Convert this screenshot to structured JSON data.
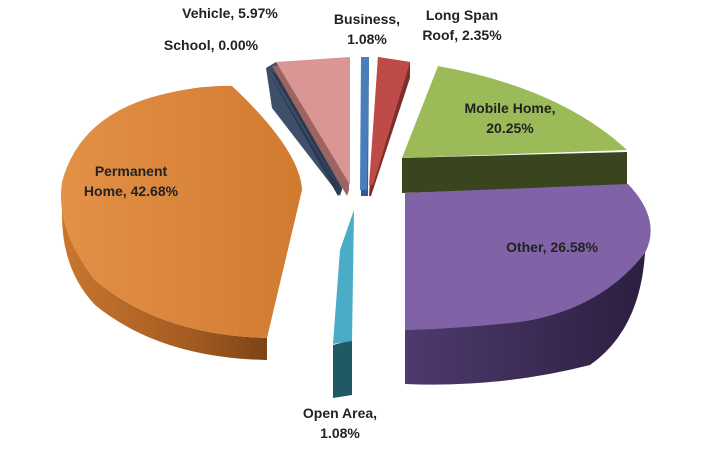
{
  "chart_data": {
    "type": "pie",
    "title": "",
    "slices": [
      {
        "label": "Business, 1.08%",
        "name": "Business",
        "value": 1.08,
        "color": "#4a7ebb"
      },
      {
        "label": "Long Span Roof, 2.35%",
        "name": "Long Span Roof",
        "value": 2.35,
        "color": "#be4b48"
      },
      {
        "label": "Mobile Home, 20.25%",
        "name": "Mobile Home",
        "value": 20.25,
        "color": "#9bbb59"
      },
      {
        "label": "Other, 26.58%",
        "name": "Other",
        "value": 26.58,
        "color": "#7f63a6"
      },
      {
        "label": "Open Area, 1.08%",
        "name": "Open Area",
        "value": 1.08,
        "color": "#4bacc6"
      },
      {
        "label": "Permanent Home, 42.68%",
        "name": "Permanent Home",
        "value": 42.68,
        "color": "#e08a3c"
      },
      {
        "label": "School, 0.00%",
        "name": "School",
        "value": 0.0,
        "color": "#3f4f6a"
      },
      {
        "label": "Vehicle, 5.97%",
        "name": "Vehicle",
        "value": 5.97,
        "color": "#d99694"
      }
    ],
    "exploded": true,
    "three_d": true,
    "legend": "none"
  }
}
